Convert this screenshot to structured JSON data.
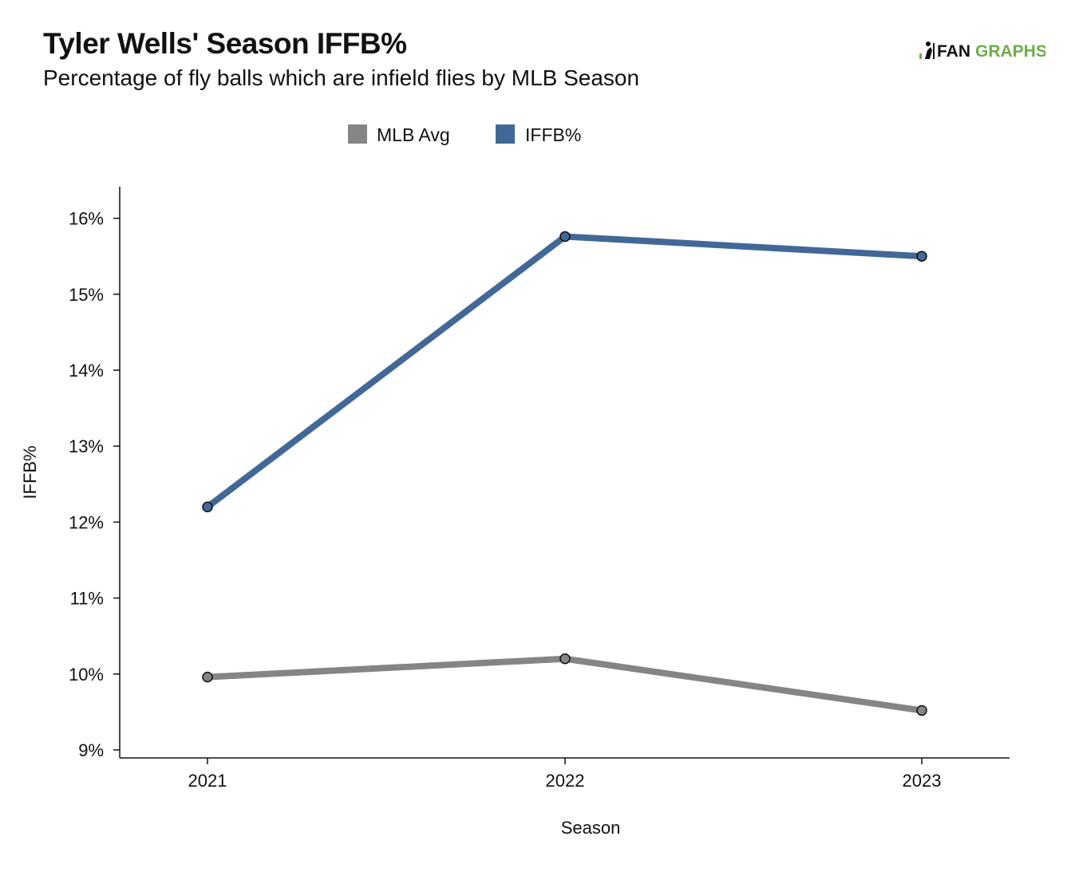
{
  "header": {
    "title": "Tyler Wells' Season IFFB%",
    "subtitle": "Percentage of fly balls which are infield flies by MLB Season",
    "logo_text_part1": "FAN",
    "logo_text_part2": "GRAPHS"
  },
  "colors": {
    "mlb_avg": "#858585",
    "iffb": "#426897",
    "logo_dark": "#111111",
    "logo_green": "#6cae4a"
  },
  "chart_data": {
    "type": "line",
    "title": "Tyler Wells' Season IFFB%",
    "subtitle": "Percentage of fly balls which are infield flies by MLB Season",
    "xlabel": "Season",
    "ylabel": "IFFB%",
    "categories": [
      "2021",
      "2022",
      "2023"
    ],
    "ylim": [
      8.9,
      16.45
    ],
    "yticks": [
      9,
      10,
      11,
      12,
      13,
      14,
      15,
      16
    ],
    "ytick_labels": [
      "9%",
      "10%",
      "11%",
      "12%",
      "13%",
      "14%",
      "15%",
      "16%"
    ],
    "legend_position": "top-center",
    "grid": false,
    "series": [
      {
        "name": "MLB Avg",
        "values": [
          9.96,
          10.2,
          9.52
        ]
      },
      {
        "name": "IFFB%",
        "values": [
          12.2,
          15.76,
          15.5
        ]
      }
    ]
  }
}
